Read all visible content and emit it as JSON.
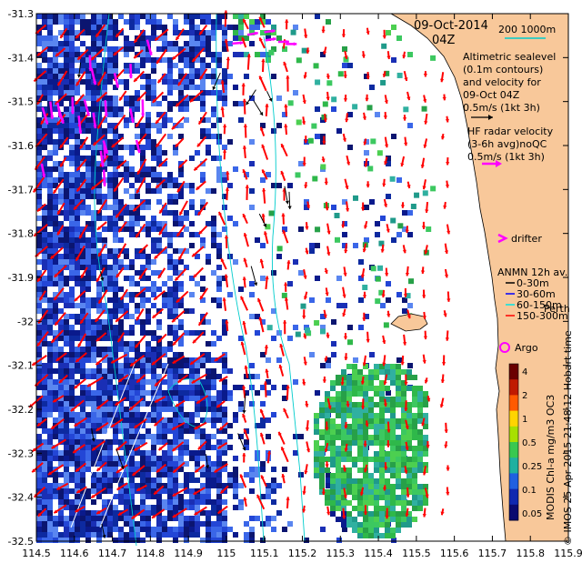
{
  "title": {
    "date": "09-Oct-2014",
    "time": "04Z",
    "bathy_legend": "200  1000m"
  },
  "legend": {
    "altimetric": [
      "Altimetric sealevel",
      "(0.1m contours)",
      "and velocity for",
      "09-Oct 04Z",
      "0.5m/s (1kt 3h)"
    ],
    "hf_radar": [
      "HF radar velocity",
      "(3-6h avg)noQC",
      "0.5m/s (1kt 3h)"
    ],
    "drifter": "drifter",
    "anmn_title": "ANMN 12h av.",
    "anmn_items": [
      {
        "label": "0-30m",
        "color": "#000000"
      },
      {
        "label": "30-60m",
        "color": "#0000ff"
      },
      {
        "label": "60-150m",
        "color": "#00e5e5"
      },
      {
        "label": "150-300m",
        "color": "#ff0000"
      }
    ],
    "argo": "Argo",
    "perth": "Perth"
  },
  "colorbar": {
    "tick_labels": [
      "4",
      "2",
      "1",
      "0.5",
      "0.25",
      "0.1",
      "0.05"
    ],
    "label": "MODIS Chl-a mg/m3 OC3"
  },
  "credit": "© IMOS 25-Apr-2015 21:48:12 Hobart time",
  "colors": {
    "land": "#f8c89a",
    "hf_arrow": "#ff0000",
    "altimetric_arrow": "#000000",
    "drifter": "#ff00ff",
    "contour": "#00cccc"
  },
  "chart_data": {
    "type": "map",
    "xlabel": "",
    "ylabel": "",
    "x_ticks": [
      "114.5",
      "114.6",
      "114.7",
      "114.8",
      "114.9",
      "115",
      "115.1",
      "115.2",
      "115.3",
      "115.4",
      "115.5",
      "115.6",
      "115.7",
      "115.8",
      "115.9"
    ],
    "y_ticks": [
      "-31.3",
      "-31.4",
      "-31.5",
      "-31.6",
      "-31.7",
      "-31.8",
      "-31.9",
      "-32",
      "-32.1",
      "-32.2",
      "-32.3",
      "-32.4",
      "-32.5"
    ],
    "xlim": [
      114.5,
      115.9
    ],
    "ylim": [
      -32.5,
      -31.3
    ]
  }
}
